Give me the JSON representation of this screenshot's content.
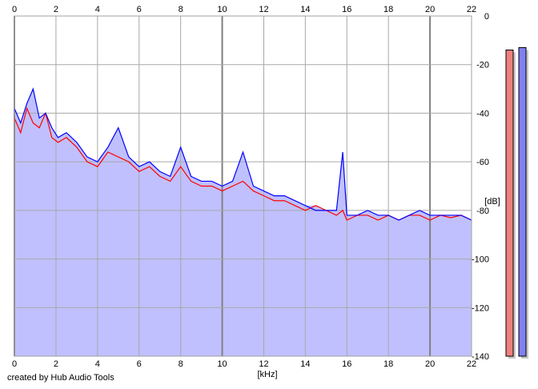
{
  "chart_data": {
    "type": "area",
    "xlabel": "[kHz]",
    "ylabel": "[dB]",
    "xlim": [
      0,
      22
    ],
    "ylim": [
      -140,
      0
    ],
    "x_ticks": [
      0,
      2,
      4,
      6,
      8,
      10,
      12,
      14,
      16,
      18,
      20,
      22
    ],
    "x_tick_labels": [
      "0",
      "2",
      "4",
      "6",
      "8",
      "10",
      "12",
      "14",
      "16",
      "18",
      "20",
      "22"
    ],
    "y_ticks": [
      0,
      -20,
      -40,
      -60,
      -80,
      -100,
      -120,
      -140
    ],
    "y_tick_labels": [
      "0",
      "-20",
      "-40",
      "-60",
      "-80",
      "-100",
      "-120",
      "-140"
    ],
    "grid": true,
    "legend": "none",
    "series": [
      {
        "color": "#ff0000",
        "x": [
          0,
          0.3,
          0.6,
          0.9,
          1.2,
          1.5,
          1.8,
          2.1,
          2.5,
          3.0,
          3.5,
          4.0,
          4.5,
          5.0,
          5.5,
          6.0,
          6.5,
          7.0,
          7.5,
          8.0,
          8.5,
          9.0,
          9.5,
          10.0,
          10.5,
          11.0,
          11.5,
          12.0,
          12.5,
          13.0,
          13.5,
          14.0,
          14.5,
          15.0,
          15.5,
          15.8,
          16.0,
          16.5,
          17.0,
          17.5,
          18.0,
          18.5,
          19.0,
          19.5,
          20.0,
          20.5,
          21.0,
          21.5,
          22.0
        ],
        "values": [
          -42,
          -48,
          -38,
          -44,
          -46,
          -40,
          -50,
          -52,
          -50,
          -54,
          -60,
          -62,
          -56,
          -58,
          -60,
          -64,
          -62,
          -66,
          -68,
          -62,
          -68,
          -70,
          -70,
          -72,
          -70,
          -68,
          -72,
          -74,
          -76,
          -76,
          -78,
          -80,
          -78,
          -80,
          -82,
          -80,
          -84,
          -82,
          -82,
          -84,
          -82,
          -84,
          -82,
          -82,
          -84,
          -82,
          -83,
          -82,
          -84
        ]
      },
      {
        "color": "#0000ff",
        "x": [
          0,
          0.3,
          0.6,
          0.9,
          1.2,
          1.5,
          1.8,
          2.1,
          2.5,
          3.0,
          3.5,
          4.0,
          4.5,
          5.0,
          5.5,
          6.0,
          6.5,
          7.0,
          7.5,
          8.0,
          8.5,
          9.0,
          9.5,
          10.0,
          10.5,
          11.0,
          11.5,
          12.0,
          12.5,
          13.0,
          13.5,
          14.0,
          14.5,
          15.0,
          15.5,
          15.8,
          16.0,
          16.5,
          17.0,
          17.5,
          18.0,
          18.5,
          19.0,
          19.5,
          20.0,
          20.5,
          21.0,
          21.5,
          22.0
        ],
        "values": [
          -38,
          -44,
          -36,
          -30,
          -42,
          -40,
          -46,
          -50,
          -48,
          -52,
          -58,
          -60,
          -54,
          -46,
          -58,
          -62,
          -60,
          -64,
          -66,
          -54,
          -66,
          -68,
          -68,
          -70,
          -68,
          -56,
          -70,
          -72,
          -74,
          -74,
          -76,
          -78,
          -80,
          -80,
          -80,
          -56,
          -82,
          -82,
          -80,
          -82,
          -82,
          -84,
          -82,
          -80,
          -82,
          -82,
          -82,
          -82,
          -84
        ]
      }
    ]
  },
  "meters": [
    {
      "color": "#f08080",
      "level_db": -14
    },
    {
      "color": "#8080f0",
      "level_db": -13
    }
  ],
  "footer": {
    "credit": "created by Hub Audio Tools"
  }
}
